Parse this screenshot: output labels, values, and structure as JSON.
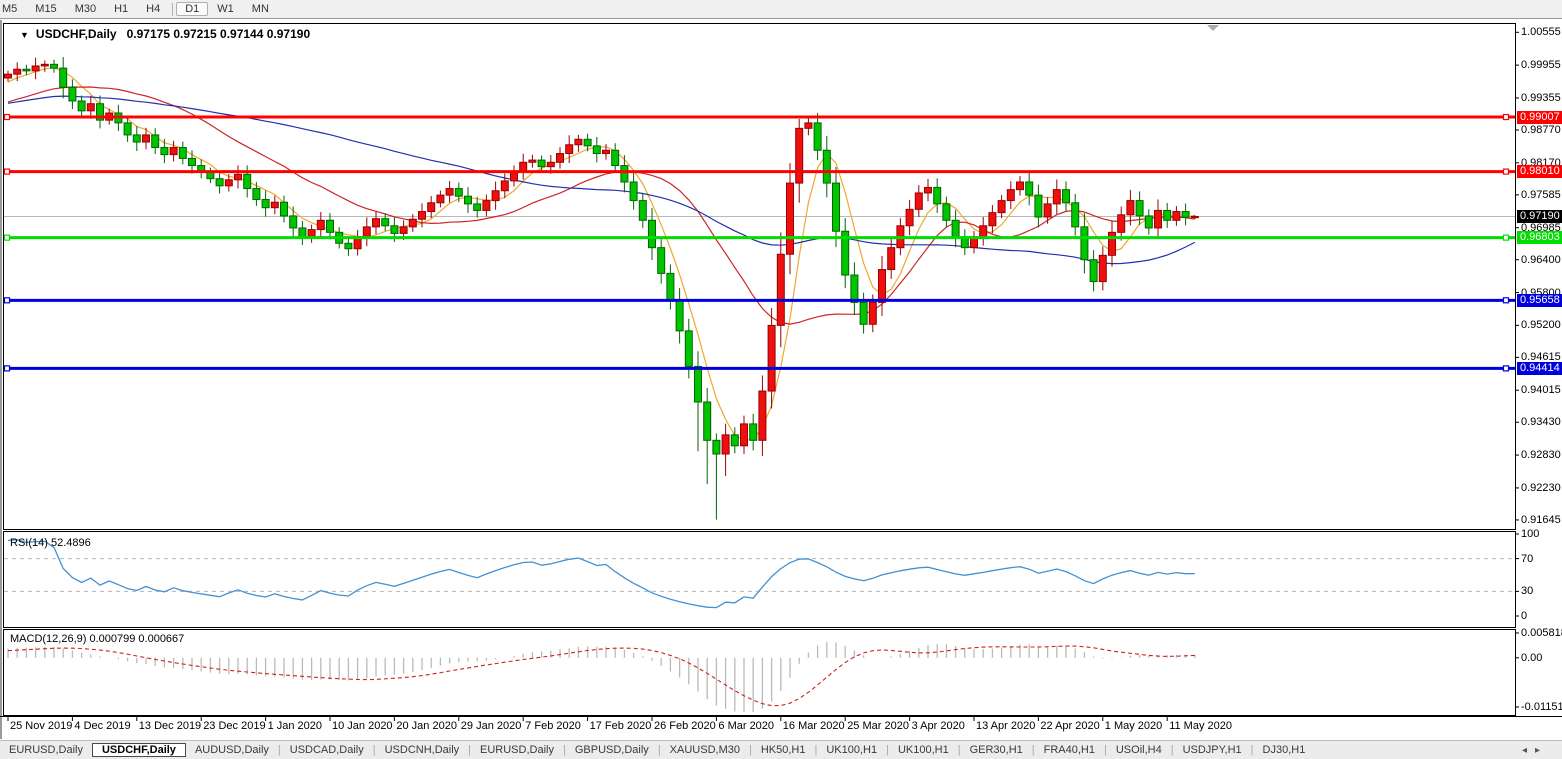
{
  "toolbar": {
    "timeframes": [
      "M5",
      "M15",
      "M30",
      "H1",
      "H4",
      "D1",
      "W1",
      "MN"
    ],
    "active_timeframe": "D1",
    "group_separator_before": "D1"
  },
  "chart": {
    "title_symbol": "USDCHF,Daily",
    "title_ohlc": "0.97175 0.97215 0.97144 0.97190"
  },
  "indicators": {
    "rsi": {
      "label": "RSI(14) 52.4896",
      "value": 52.4896,
      "period": 14,
      "axis": [
        "100",
        "70",
        "30",
        "0"
      ],
      "guides": [
        70,
        30
      ]
    },
    "macd": {
      "label": "MACD(12,26,9) 0.000799 0.000667",
      "macd_value": 0.000799,
      "signal_value": 0.000667,
      "axis": [
        {
          "label": "0.005818",
          "v": 0.005818
        },
        {
          "label": "0.00",
          "v": 0
        },
        {
          "label": "-0.011514",
          "v": -0.011514
        }
      ]
    }
  },
  "price_axis": {
    "ticks": [
      "1.00555",
      "0.99955",
      "0.99355",
      "0.98770",
      "0.98170",
      "0.97585",
      "0.96985",
      "0.96400",
      "0.95800",
      "0.95200",
      "0.94615",
      "0.94015",
      "0.93430",
      "0.92830",
      "0.92230",
      "0.91645"
    ]
  },
  "x_axis": {
    "ticks": [
      "25 Nov 2019",
      "4 Dec 2019",
      "13 Dec 2019",
      "23 Dec 2019",
      "1 Jan 2020",
      "10 Jan 2020",
      "20 Jan 2020",
      "29 Jan 2020",
      "7 Feb 2020",
      "17 Feb 2020",
      "26 Feb 2020",
      "6 Mar 2020",
      "16 Mar 2020",
      "25 Mar 2020",
      "3 Apr 2020",
      "13 Apr 2020",
      "22 Apr 2020",
      "1 May 2020",
      "11 May 2020"
    ],
    "tick_every_candles": 7
  },
  "tabs": {
    "items": [
      "EURUSD,Daily",
      "USDCHF,Daily",
      "AUDUSD,Daily",
      "USDCAD,Daily",
      "USDCNH,Daily",
      "EURUSD,Daily",
      "GBPUSD,Daily",
      "XAUUSD,M30",
      "HK50,H1",
      "UK100,H1",
      "UK100,H1",
      "GER30,H1",
      "FRA40,H1",
      "USOil,H4",
      "USDJPY,H1",
      "DJ30,H1"
    ],
    "active_index": 1,
    "scroll_left_icon": "◂",
    "scroll_right_icon": "▸"
  },
  "chart_data": {
    "type": "candlestick",
    "symbol": "USDCHF",
    "timeframe": "Daily",
    "last_candle": {
      "open": 0.97175,
      "high": 0.97215,
      "low": 0.97144,
      "close": 0.9719
    },
    "current_price": 0.9719,
    "price_axis_top": 1.00555,
    "price_axis_bottom": 0.91645,
    "levels": [
      {
        "label": "0.99007",
        "value": 0.99007,
        "color": "#fe0000",
        "kind": "resistance"
      },
      {
        "label": "0.98010",
        "value": 0.9801,
        "color": "#fe0000",
        "kind": "resistance"
      },
      {
        "label": "0.96803",
        "value": 0.96803,
        "color": "#00dd00",
        "kind": "support"
      },
      {
        "label": "0.95658",
        "value": 0.95658,
        "color": "#0000dd",
        "kind": "support"
      },
      {
        "label": "0.94414",
        "value": 0.94414,
        "color": "#0000dd",
        "kind": "support"
      }
    ],
    "moving_averages": [
      {
        "period": 5,
        "color": "#efa72e",
        "name": "ma-fast"
      },
      {
        "period": 20,
        "color": "#cc2626",
        "name": "ma-mid"
      },
      {
        "period": 52,
        "color": "#2330ae",
        "name": "ma-slow"
      }
    ],
    "colors": {
      "up_body": "#ee0f0f",
      "up_border": "#990000",
      "down_body": "#00c400",
      "down_border": "#006600",
      "current_price_line": "#b8b8b8",
      "rsi_line": "#4191d6",
      "guide_dash": "#b5b5b5",
      "macd_histogram": "#b9b9b9",
      "macd_signal": "#cc2222",
      "badge_current": "#000000"
    },
    "pre_closes": [
      0.988,
      0.9885,
      0.9892,
      0.989,
      0.9898,
      0.9905,
      0.991,
      0.9908,
      0.9915,
      0.9922,
      0.9928,
      0.9925,
      0.9932,
      0.994,
      0.9945,
      0.9942,
      0.995,
      0.9958,
      0.9965,
      0.9972
    ],
    "closes": [
      0.9979,
      0.9988,
      0.9985,
      0.9994,
      0.9997,
      0.999,
      0.9955,
      0.993,
      0.9912,
      0.9925,
      0.9895,
      0.9908,
      0.989,
      0.9868,
      0.9855,
      0.9868,
      0.9845,
      0.9832,
      0.9845,
      0.9825,
      0.9812,
      0.98,
      0.9788,
      0.9775,
      0.9786,
      0.9796,
      0.977,
      0.975,
      0.9735,
      0.9745,
      0.972,
      0.9698,
      0.968,
      0.9695,
      0.9712,
      0.969,
      0.967,
      0.966,
      0.9682,
      0.97,
      0.9715,
      0.9702,
      0.9688,
      0.97,
      0.9714,
      0.9728,
      0.9744,
      0.9758,
      0.977,
      0.9756,
      0.9742,
      0.973,
      0.9748,
      0.9766,
      0.9784,
      0.9802,
      0.9818,
      0.9822,
      0.981,
      0.9818,
      0.9834,
      0.985,
      0.986,
      0.9848,
      0.9834,
      0.984,
      0.9812,
      0.9782,
      0.9748,
      0.9712,
      0.9662,
      0.9615,
      0.9565,
      0.951,
      0.9445,
      0.938,
      0.931,
      0.9285,
      0.932,
      0.93,
      0.934,
      0.931,
      0.94,
      0.952,
      0.965,
      0.978,
      0.988,
      0.989,
      0.984,
      0.978,
      0.9692,
      0.9612,
      0.9562,
      0.9522,
      0.9562,
      0.9622,
      0.9662,
      0.9702,
      0.9732,
      0.9762,
      0.9772,
      0.9742,
      0.9712,
      0.9682,
      0.9662,
      0.9682,
      0.9702,
      0.9726,
      0.9748,
      0.9768,
      0.9782,
      0.9758,
      0.9718,
      0.9742,
      0.9768,
      0.9744,
      0.97,
      0.964,
      0.96,
      0.9648,
      0.969,
      0.9722,
      0.9748,
      0.972,
      0.9698,
      0.973,
      0.9712,
      0.9728,
      0.97175,
      0.9719
    ],
    "wick_overrides": {
      "4": {
        "h": 1.0004
      },
      "62": {
        "h": 0.9868
      },
      "75": {
        "l": 0.929
      },
      "76": {
        "l": 0.923
      },
      "77": {
        "l": 0.9165
      },
      "78": {
        "l": 0.9245
      },
      "86": {
        "h": 0.9897
      },
      "87": {
        "h": 0.9901
      },
      "93": {
        "l": 0.9505
      },
      "118": {
        "l": 0.9582
      },
      "129": {
        "h": 0.97215,
        "l": 0.97144
      }
    }
  }
}
